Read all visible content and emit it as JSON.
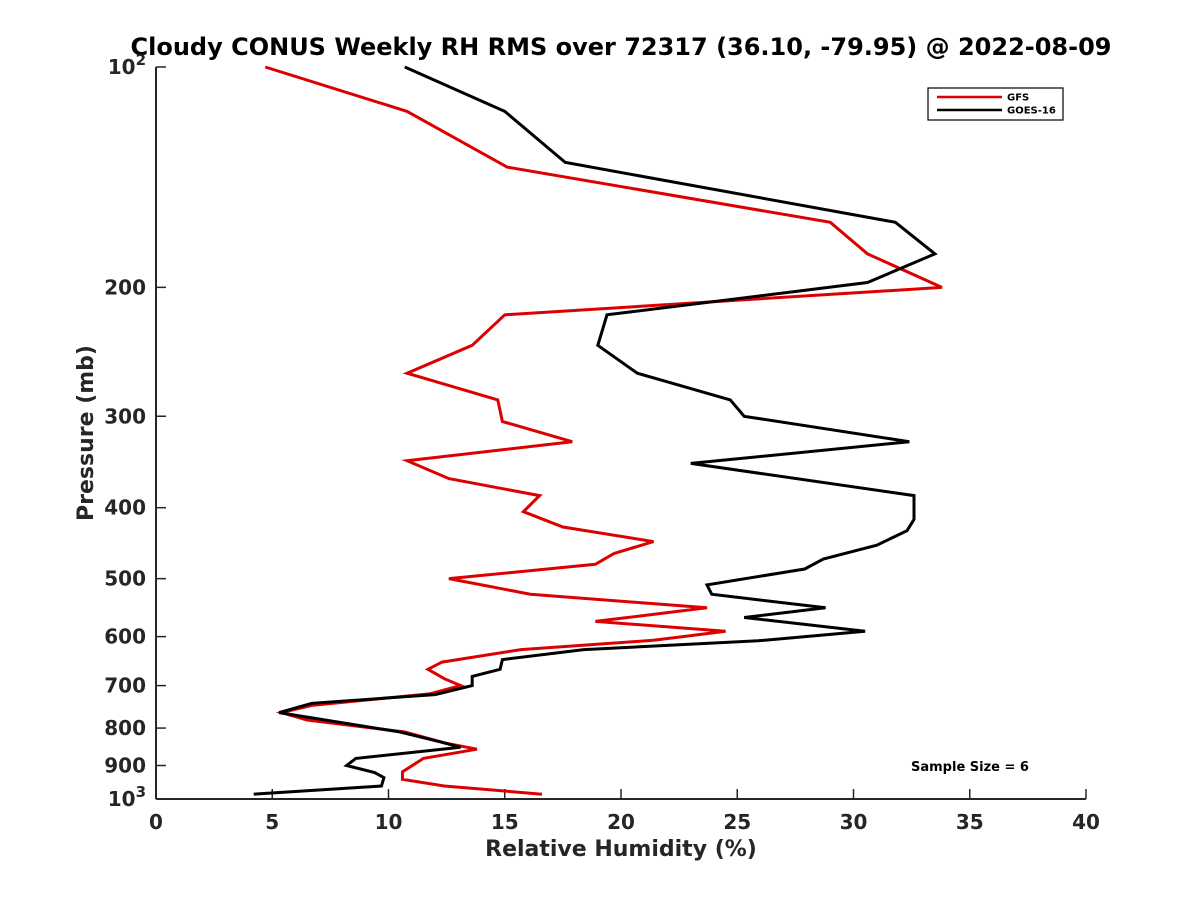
{
  "chart_data": {
    "type": "line",
    "title": "Cloudy CONUS Weekly RH RMS over 72317 (36.10, -79.95) @ 2022-08-09",
    "xlabel": "Relative Humidity (%)",
    "ylabel": "Pressure (mb)",
    "xlim": [
      0,
      40
    ],
    "ylim": [
      100,
      1000
    ],
    "y_scale": "log",
    "y_reversed": true,
    "grid": false,
    "legend_position": "top-right",
    "x_ticks": [
      {
        "value": 0,
        "label": "0"
      },
      {
        "value": 5,
        "label": "5"
      },
      {
        "value": 10,
        "label": "10"
      },
      {
        "value": 15,
        "label": "15"
      },
      {
        "value": 20,
        "label": "20"
      },
      {
        "value": 25,
        "label": "25"
      },
      {
        "value": 30,
        "label": "30"
      },
      {
        "value": 35,
        "label": "35"
      },
      {
        "value": 40,
        "label": "40"
      }
    ],
    "y_ticks": [
      {
        "value": 100,
        "label": "10",
        "sup": "2"
      },
      {
        "value": 200,
        "label": "200",
        "sup": ""
      },
      {
        "value": 300,
        "label": "300",
        "sup": ""
      },
      {
        "value": 400,
        "label": "400",
        "sup": ""
      },
      {
        "value": 500,
        "label": "500",
        "sup": ""
      },
      {
        "value": 600,
        "label": "600",
        "sup": ""
      },
      {
        "value": 700,
        "label": "700",
        "sup": ""
      },
      {
        "value": 800,
        "label": "800",
        "sup": ""
      },
      {
        "value": 900,
        "label": "900",
        "sup": ""
      },
      {
        "value": 1000,
        "label": "10",
        "sup": "3"
      }
    ],
    "series": [
      {
        "name": "GFS",
        "color": "#dd0000",
        "points": [
          [
            4.7,
            100
          ],
          [
            10.8,
            115
          ],
          [
            15.1,
            137
          ],
          [
            29.0,
            163
          ],
          [
            30.6,
            180
          ],
          [
            33.8,
            200
          ],
          [
            15.0,
            218
          ],
          [
            13.6,
            240
          ],
          [
            10.8,
            262
          ],
          [
            14.7,
            285
          ],
          [
            14.9,
            305
          ],
          [
            17.9,
            325
          ],
          [
            10.8,
            345
          ],
          [
            12.6,
            365
          ],
          [
            16.5,
            385
          ],
          [
            15.8,
            405
          ],
          [
            17.5,
            425
          ],
          [
            21.4,
            445
          ],
          [
            19.7,
            462
          ],
          [
            18.9,
            478
          ],
          [
            12.6,
            500
          ],
          [
            16.1,
            525
          ],
          [
            23.7,
            548
          ],
          [
            18.9,
            572
          ],
          [
            24.5,
            590
          ],
          [
            21.4,
            607
          ],
          [
            15.7,
            625
          ],
          [
            12.3,
            650
          ],
          [
            11.7,
            665
          ],
          [
            12.4,
            685
          ],
          [
            13.1,
            700
          ],
          [
            11.8,
            718
          ],
          [
            6.7,
            745
          ],
          [
            5.4,
            762
          ],
          [
            6.5,
            780
          ],
          [
            10.7,
            810
          ],
          [
            12.4,
            838
          ],
          [
            13.8,
            855
          ],
          [
            11.5,
            880
          ],
          [
            10.6,
            918
          ],
          [
            10.6,
            940
          ],
          [
            12.4,
            960
          ],
          [
            16.6,
            985
          ]
        ]
      },
      {
        "name": "GOES-16",
        "color": "#000000",
        "points": [
          [
            10.7,
            100
          ],
          [
            15.0,
            115
          ],
          [
            17.6,
            135
          ],
          [
            31.8,
            163
          ],
          [
            33.5,
            180
          ],
          [
            30.6,
            197
          ],
          [
            19.4,
            218
          ],
          [
            19.0,
            240
          ],
          [
            20.7,
            262
          ],
          [
            24.7,
            285
          ],
          [
            25.3,
            300
          ],
          [
            32.4,
            325
          ],
          [
            23.0,
            348
          ],
          [
            32.6,
            385
          ],
          [
            32.6,
            415
          ],
          [
            32.3,
            430
          ],
          [
            31.0,
            450
          ],
          [
            28.7,
            470
          ],
          [
            27.9,
            485
          ],
          [
            23.7,
            510
          ],
          [
            23.9,
            525
          ],
          [
            28.8,
            548
          ],
          [
            25.3,
            565
          ],
          [
            30.5,
            590
          ],
          [
            25.9,
            608
          ],
          [
            18.4,
            625
          ],
          [
            14.9,
            645
          ],
          [
            14.8,
            665
          ],
          [
            13.6,
            680
          ],
          [
            13.6,
            700
          ],
          [
            12.0,
            720
          ],
          [
            6.7,
            740
          ],
          [
            5.3,
            762
          ],
          [
            10.5,
            810
          ],
          [
            12.2,
            835
          ],
          [
            13.1,
            850
          ],
          [
            8.6,
            880
          ],
          [
            8.2,
            900
          ],
          [
            9.4,
            920
          ],
          [
            9.8,
            935
          ],
          [
            9.7,
            960
          ],
          [
            4.2,
            985
          ]
        ]
      }
    ],
    "annotations": [
      {
        "text": "Sample Size = 6"
      }
    ]
  }
}
